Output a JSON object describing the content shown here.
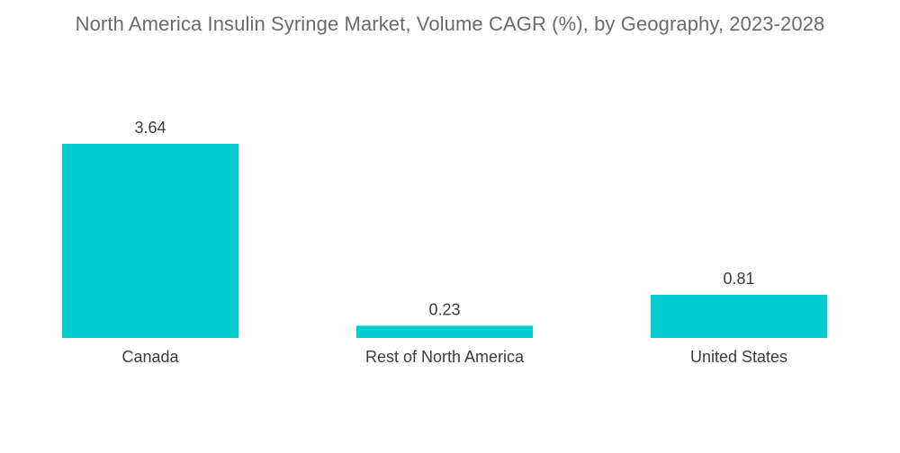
{
  "chart_data": {
    "type": "bar",
    "title": "North America Insulin Syringe Market, Volume CAGR (%), by Geography, 2023-2028",
    "categories": [
      "Canada",
      "Rest of North America",
      "United States"
    ],
    "values": [
      3.64,
      0.23,
      0.81
    ],
    "data_labels": [
      "3.64",
      "0.23",
      "0.81"
    ],
    "xlabel": "",
    "ylabel": "",
    "ylim": [
      0,
      3.64
    ],
    "grid": false,
    "legend": "none",
    "bar_color": "#00CED1"
  }
}
